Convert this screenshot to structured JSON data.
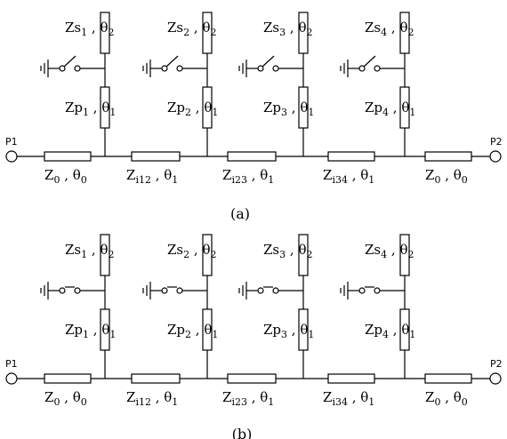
{
  "panels": [
    {
      "caption": "(a)",
      "switch_state": "open",
      "ports": {
        "left": "P1",
        "right": "P2"
      },
      "series_lines": [
        {
          "base": "Z",
          "sub": "0",
          "theta": "θ",
          "theta_sub": "0"
        },
        {
          "base": "Z",
          "sub": "i12",
          "theta": "θ",
          "theta_sub": "1"
        },
        {
          "base": "Z",
          "sub": "i23",
          "theta": "θ",
          "theta_sub": "1"
        },
        {
          "base": "Z",
          "sub": "i34",
          "theta": "θ",
          "theta_sub": "1"
        },
        {
          "base": "Z",
          "sub": "0",
          "theta": "θ",
          "theta_sub": "0"
        }
      ],
      "stubs": [
        {
          "zs": {
            "base": "Zs",
            "sub": "1",
            "theta": "θ",
            "theta_sub": "2"
          },
          "zp": {
            "base": "Zp",
            "sub": "1",
            "theta": "θ",
            "theta_sub": "1"
          }
        },
        {
          "zs": {
            "base": "Zs",
            "sub": "2",
            "theta": "θ",
            "theta_sub": "2"
          },
          "zp": {
            "base": "Zp",
            "sub": "2",
            "theta": "θ",
            "theta_sub": "1"
          }
        },
        {
          "zs": {
            "base": "Zs",
            "sub": "3",
            "theta": "θ",
            "theta_sub": "2"
          },
          "zp": {
            "base": "Zp",
            "sub": "3",
            "theta": "θ",
            "theta_sub": "1"
          }
        },
        {
          "zs": {
            "base": "Zs",
            "sub": "4",
            "theta": "θ",
            "theta_sub": "2"
          },
          "zp": {
            "base": "Zp",
            "sub": "4",
            "theta": "θ",
            "theta_sub": "1"
          }
        }
      ]
    },
    {
      "caption": "(b)",
      "switch_state": "closed",
      "ports": {
        "left": "P1",
        "right": "P2"
      },
      "series_lines": [
        {
          "base": "Z",
          "sub": "0",
          "theta": "θ",
          "theta_sub": "0"
        },
        {
          "base": "Z",
          "sub": "i12",
          "theta": "θ",
          "theta_sub": "1"
        },
        {
          "base": "Z",
          "sub": "i23",
          "theta": "θ",
          "theta_sub": "1"
        },
        {
          "base": "Z",
          "sub": "i34",
          "theta": "θ",
          "theta_sub": "1"
        },
        {
          "base": "Z",
          "sub": "0",
          "theta": "θ",
          "theta_sub": "0"
        }
      ],
      "stubs": [
        {
          "zs": {
            "base": "Zs",
            "sub": "1",
            "theta": "θ",
            "theta_sub": "2"
          },
          "zp": {
            "base": "Zp",
            "sub": "1",
            "theta": "θ",
            "theta_sub": "1"
          }
        },
        {
          "zs": {
            "base": "Zs",
            "sub": "2",
            "theta": "θ",
            "theta_sub": "2"
          },
          "zp": {
            "base": "Zp",
            "sub": "2",
            "theta": "θ",
            "theta_sub": "1"
          }
        },
        {
          "zs": {
            "base": "Zs",
            "sub": "3",
            "theta": "θ",
            "theta_sub": "2"
          },
          "zp": {
            "base": "Zp",
            "sub": "3",
            "theta": "θ",
            "theta_sub": "1"
          }
        },
        {
          "zs": {
            "base": "Zs",
            "sub": "4",
            "theta": "θ",
            "theta_sub": "2"
          },
          "zp": {
            "base": "Zp",
            "sub": "4",
            "theta": "θ",
            "theta_sub": "1"
          }
        }
      ]
    }
  ]
}
